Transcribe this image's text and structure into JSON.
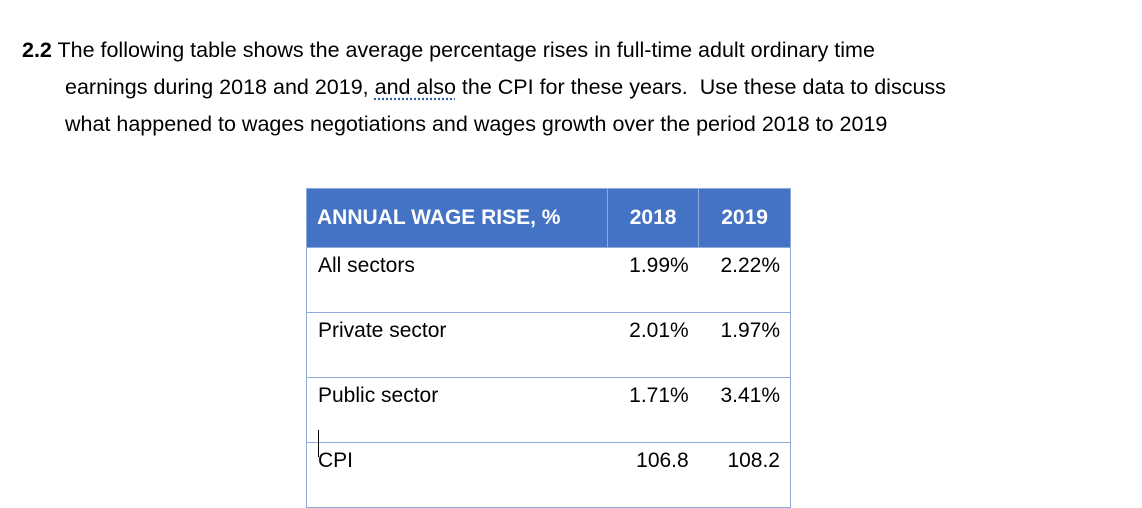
{
  "question": {
    "number": "2.2",
    "lines": [
      "The following table shows the average percentage rises in full-time adult ordinary time",
      "earnings during 2018 and 2019,",
      "and also",
      "the CPI for these years.  Use these data to discuss",
      "what happened to wages negotiations and wages growth over the period 2018 to 2019"
    ]
  },
  "table": {
    "header": [
      "ANNUAL WAGE RISE, %",
      "2018",
      "2019"
    ],
    "rows": [
      [
        "All sectors",
        "1.99%",
        "2.22%"
      ],
      [
        "Private sector",
        "2.01%",
        "1.97%"
      ],
      [
        "Public sector",
        "1.71%",
        "3.41%"
      ],
      [
        "CPI",
        "106.8",
        "108.2"
      ]
    ]
  }
}
